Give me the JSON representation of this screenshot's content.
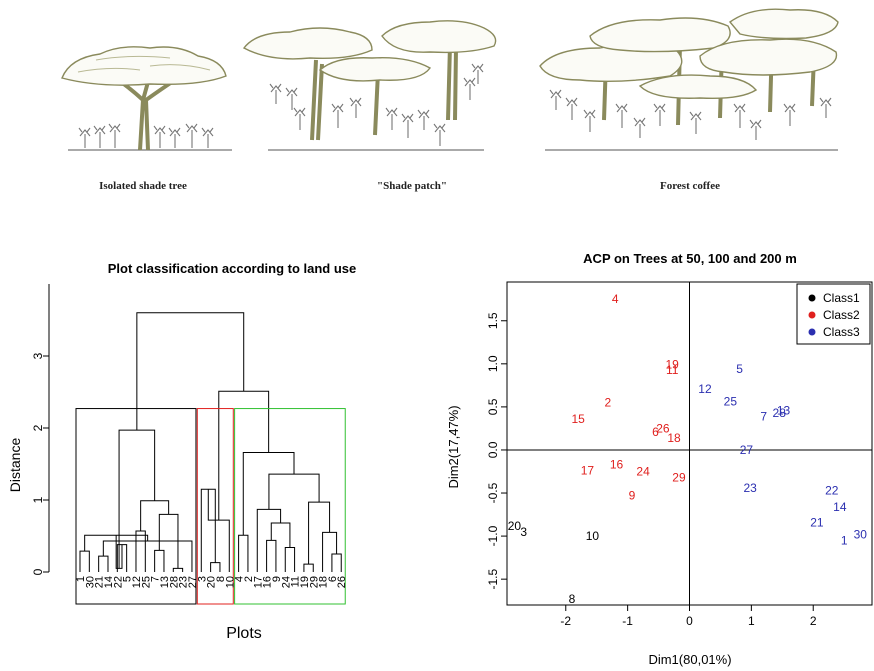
{
  "illustrations": [
    {
      "caption": "Isolated shade tree"
    },
    {
      "caption": "\"Shade patch\""
    },
    {
      "caption": "Forest coffee"
    }
  ],
  "colors": {
    "tree": "#8a8a5c",
    "tree_dark": "#6e6e48",
    "class1": "#000000",
    "class2": "#e0201e",
    "class3": "#2b2fb0",
    "box_black": "#000000",
    "box_red": "#e0201e",
    "box_green": "#30c030"
  },
  "chart_data": [
    {
      "type": "dendrogram",
      "title": "Plot classification according to land use",
      "xlabel": "Plots",
      "ylabel": "Distance",
      "ylim": [
        0,
        3.6
      ],
      "yticks": [
        0,
        1,
        2,
        3
      ],
      "leaf_order": [
        "1",
        "30",
        "21",
        "14",
        "22",
        "5",
        "12",
        "25",
        "7",
        "13",
        "28",
        "23",
        "27",
        "3",
        "20",
        "8",
        "10",
        "4",
        "2",
        "17",
        "16",
        "9",
        "24",
        "11",
        "19",
        "29",
        "18",
        "6",
        "26"
      ],
      "merges": [
        {
          "a": "1",
          "b": "30",
          "height": 0.29
        },
        {
          "a": "21",
          "b": "14",
          "height": 0.22
        },
        {
          "a": "22",
          "b": "5",
          "height": 0.38
        },
        {
          "a": "12",
          "b": "25",
          "height": 0.57
        },
        {
          "a": "7",
          "b": "13",
          "height": 0.3
        },
        {
          "a": "28",
          "b": "23",
          "height": 0.05
        },
        {
          "a": "c5",
          "b": "c6",
          "height": 0.8
        },
        {
          "a": "c4",
          "b": "c7",
          "height": 0.99
        },
        {
          "a": "c2",
          "b": "27",
          "height": 0.43
        },
        {
          "a": "c1",
          "b": "c9",
          "height": 0.51
        },
        {
          "a": "c10",
          "b": "c3",
          "height": 0.05
        },
        {
          "a": "c11",
          "b": "c8",
          "height": 1.97
        },
        {
          "a": "20",
          "b": "8",
          "height": 0.13
        },
        {
          "a": "3",
          "b": "c13",
          "height": 1.15
        },
        {
          "a": "10",
          "b": "c14",
          "height": 0.72
        },
        {
          "a": "4",
          "b": "2",
          "height": 0.51
        },
        {
          "a": "16",
          "b": "9",
          "height": 0.44
        },
        {
          "a": "24",
          "b": "11",
          "height": 0.34
        },
        {
          "a": "c17",
          "b": "c18",
          "height": 0.68
        },
        {
          "a": "17",
          "b": "c19",
          "height": 0.87
        },
        {
          "a": "19",
          "b": "29",
          "height": 0.11
        },
        {
          "a": "6",
          "b": "26",
          "height": 0.25
        },
        {
          "a": "18",
          "b": "c22",
          "height": 0.55
        },
        {
          "a": "c21",
          "b": "c23",
          "height": 0.97
        },
        {
          "a": "c20",
          "b": "c24",
          "height": 1.36
        },
        {
          "a": "c16",
          "b": "c25",
          "height": 1.66
        },
        {
          "a": "c15",
          "b": "c26",
          "height": 2.51
        },
        {
          "a": "c12",
          "b": "c27",
          "height": 3.6
        }
      ],
      "clusters": [
        {
          "from": 0,
          "to": 12,
          "color": "box_black",
          "top": 2.27
        },
        {
          "from": 13,
          "to": 16,
          "color": "box_red",
          "top": 2.27
        },
        {
          "from": 17,
          "to": 28,
          "color": "box_green",
          "top": 2.27
        }
      ]
    },
    {
      "type": "scatter",
      "title": "ACP on Trees at 50, 100 and 200 m",
      "xlabel": "Dim1(80,01%)",
      "ylabel": "Dim2(17,47%)",
      "xlim": [
        -2.95,
        2.95
      ],
      "ylim": [
        -1.8,
        1.95
      ],
      "xticks": [
        -2,
        -1,
        0,
        1,
        2
      ],
      "yticks": [
        -1.5,
        -1.0,
        -0.5,
        0.0,
        0.5,
        1.0,
        1.5
      ],
      "legend_position": "top-right",
      "series": [
        {
          "name": "Class1",
          "color": "class1",
          "points": [
            {
              "label": "20",
              "x": -2.83,
              "y": -0.88
            },
            {
              "label": "3",
              "x": -2.68,
              "y": -0.95
            },
            {
              "label": "10",
              "x": -1.57,
              "y": -1.0
            },
            {
              "label": "8",
              "x": -1.9,
              "y": -1.73
            }
          ]
        },
        {
          "name": "Class2",
          "color": "class2",
          "points": [
            {
              "label": "4",
              "x": -1.2,
              "y": 1.75
            },
            {
              "label": "19",
              "x": -0.28,
              "y": 0.99
            },
            {
              "label": "11",
              "x": -0.28,
              "y": 0.93
            },
            {
              "label": "2",
              "x": -1.32,
              "y": 0.55
            },
            {
              "label": "15",
              "x": -1.8,
              "y": 0.36
            },
            {
              "label": "26",
              "x": -0.43,
              "y": 0.25
            },
            {
              "label": "6",
              "x": -0.55,
              "y": 0.21
            },
            {
              "label": "18",
              "x": -0.25,
              "y": 0.14
            },
            {
              "label": "17",
              "x": -1.65,
              "y": -0.24
            },
            {
              "label": "16",
              "x": -1.18,
              "y": -0.17
            },
            {
              "label": "24",
              "x": -0.75,
              "y": -0.25
            },
            {
              "label": "29",
              "x": -0.17,
              "y": -0.32
            },
            {
              "label": "9",
              "x": -0.93,
              "y": -0.53
            }
          ]
        },
        {
          "name": "Class3",
          "color": "class3",
          "points": [
            {
              "label": "5",
              "x": 0.81,
              "y": 0.94
            },
            {
              "label": "12",
              "x": 0.25,
              "y": 0.71
            },
            {
              "label": "25",
              "x": 0.66,
              "y": 0.56
            },
            {
              "label": "13",
              "x": 1.52,
              "y": 0.46
            },
            {
              "label": "28",
              "x": 1.45,
              "y": 0.43
            },
            {
              "label": "7",
              "x": 1.2,
              "y": 0.39
            },
            {
              "label": "27",
              "x": 0.92,
              "y": 0.0
            },
            {
              "label": "23",
              "x": 0.98,
              "y": -0.44
            },
            {
              "label": "22",
              "x": 2.3,
              "y": -0.47
            },
            {
              "label": "14",
              "x": 2.43,
              "y": -0.66
            },
            {
              "label": "21",
              "x": 2.06,
              "y": -0.84
            },
            {
              "label": "30",
              "x": 2.76,
              "y": -0.98
            },
            {
              "label": "1",
              "x": 2.5,
              "y": -1.05
            }
          ]
        }
      ]
    }
  ]
}
